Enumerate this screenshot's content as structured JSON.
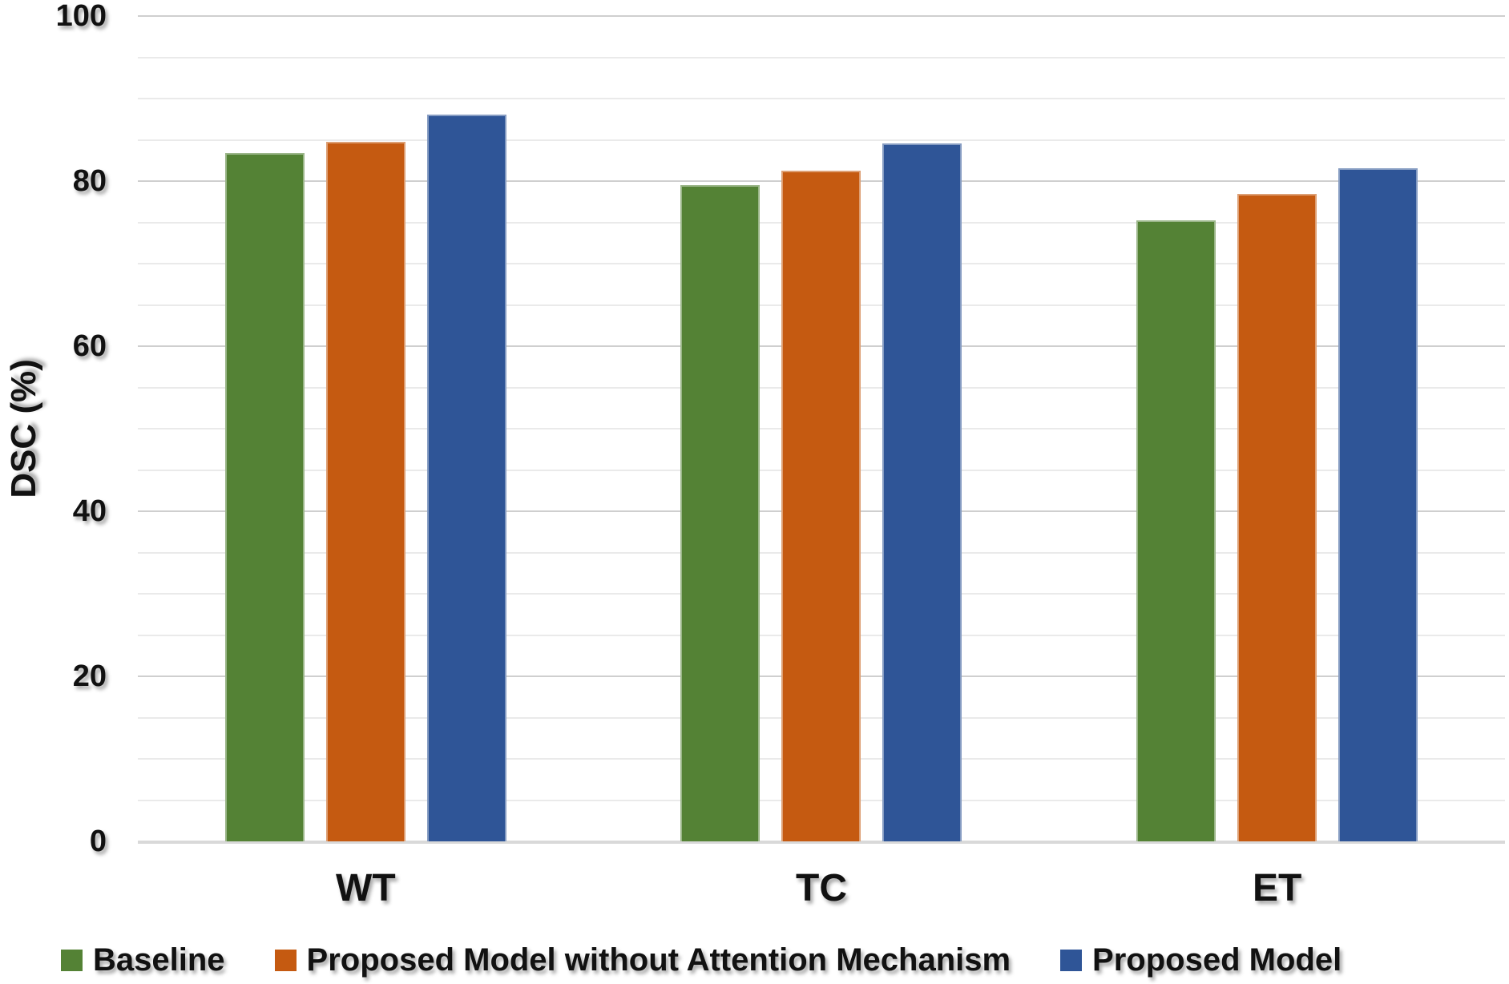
{
  "chart_data": {
    "type": "bar",
    "title": "",
    "categories": [
      "WT",
      "TC",
      "ET"
    ],
    "series": [
      {
        "name": "Baseline",
        "color": "#548235",
        "values": [
          83.4,
          79.5,
          75.2
        ]
      },
      {
        "name": "Proposed Model without Attention Mechanism",
        "color": "#C55A11",
        "values": [
          84.8,
          81.3,
          78.4
        ]
      },
      {
        "name": "Proposed Model",
        "color": "#2F5597",
        "values": [
          88.1,
          84.6,
          81.6
        ]
      }
    ],
    "xlabel": "",
    "ylabel": "DSC (%)",
    "ylim": [
      0,
      100
    ],
    "yticks": [
      0,
      20,
      40,
      60,
      80,
      100
    ],
    "ytick_step_major": 20,
    "ytick_step_minor": 5,
    "grid": true,
    "gridline_color_major": "#CFCFCF",
    "gridline_color_minor": "#EAEAEA",
    "axis_line_color": "#D9D9D9",
    "legend_position": "bottom"
  }
}
